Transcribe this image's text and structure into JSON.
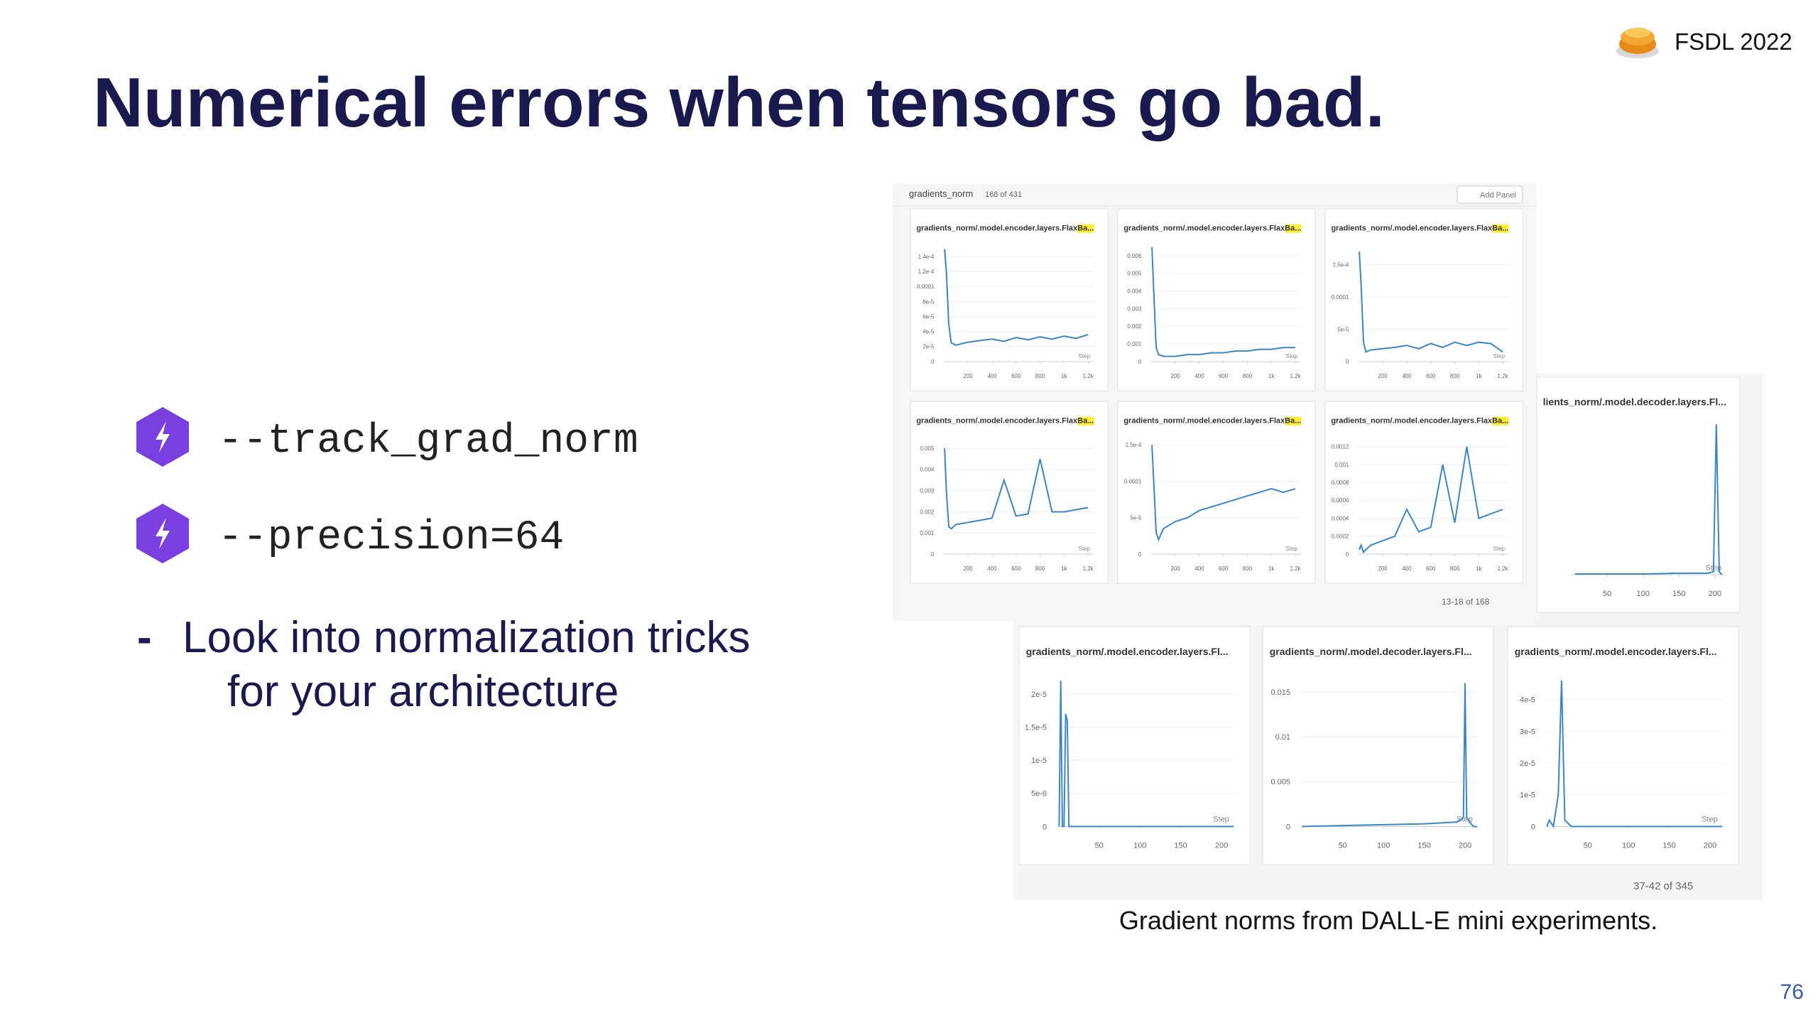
{
  "header": {
    "title": "Numerical errors when tensors go bad.",
    "brand": "FSDL 2022",
    "page_number": "76"
  },
  "bullets": [
    "--track_grad_norm",
    "--precision=64"
  ],
  "note": {
    "marker": "-",
    "lines": [
      "Look into normalization tricks",
      "for your architecture"
    ]
  },
  "screenshot_top": {
    "section": "gradients_norm",
    "count": "168 of 431",
    "add_panel": "Add Panel",
    "pager": "13-18 of 168",
    "panels": [
      {
        "title": "gradients_norm/.model.encoder.layers.FlaxBa...",
        "x_label": "Step",
        "xlim": [
          0,
          1250
        ],
        "ylim": [
          0,
          0.000155
        ],
        "xticks": [
          200,
          400,
          600,
          800,
          {
            "value": 1000,
            "label": "1k"
          },
          {
            "value": 1200,
            "label": "1.2k"
          }
        ],
        "yticks": [
          0,
          {
            "value": 2e-05,
            "label": "2e-5"
          },
          {
            "value": 4e-05,
            "label": "4e-5"
          },
          {
            "value": 6e-05,
            "label": "6e-5"
          },
          {
            "value": 8e-05,
            "label": "8e-5"
          },
          0.0001,
          {
            "value": 0.00012,
            "label": "1.2e-4"
          },
          {
            "value": 0.00014,
            "label": "1.4e-4"
          }
        ],
        "x": [
          5,
          20,
          40,
          60,
          100,
          200,
          300,
          400,
          500,
          600,
          700,
          800,
          900,
          1000,
          1100,
          1200
        ],
        "values": [
          0.00015,
          0.00012,
          5e-05,
          2.5e-05,
          2.2e-05,
          2.6e-05,
          2.8e-05,
          3e-05,
          2.7e-05,
          3.2e-05,
          2.9e-05,
          3.3e-05,
          3e-05,
          3.4e-05,
          3.1e-05,
          3.6e-05
        ]
      },
      {
        "title": "gradients_norm/.model.encoder.layers.FlaxBa...",
        "x_label": "Step",
        "xlim": [
          0,
          1250
        ],
        "ylim": [
          0,
          0.0066
        ],
        "xticks": [
          200,
          400,
          600,
          800,
          {
            "value": 1000,
            "label": "1k"
          },
          {
            "value": 1200,
            "label": "1.2k"
          }
        ],
        "yticks": [
          0,
          0.001,
          0.002,
          0.003,
          0.004,
          0.005,
          0.006
        ],
        "x": [
          5,
          20,
          40,
          60,
          100,
          200,
          300,
          400,
          500,
          600,
          700,
          800,
          900,
          1000,
          1100,
          1200
        ],
        "values": [
          0.0065,
          0.004,
          0.0008,
          0.0004,
          0.0003,
          0.0003,
          0.0004,
          0.0004,
          0.0005,
          0.0005,
          0.0006,
          0.0006,
          0.0007,
          0.0007,
          0.0008,
          0.0008
        ]
      },
      {
        "title": "gradients_norm/.model.encoder.layers.FlaxBa...",
        "x_label": "Step",
        "xlim": [
          0,
          1250
        ],
        "ylim": [
          0,
          0.00018
        ],
        "xticks": [
          200,
          400,
          600,
          800,
          {
            "value": 1000,
            "label": "1k"
          },
          {
            "value": 1200,
            "label": "1.2k"
          }
        ],
        "yticks": [
          0,
          {
            "value": 5e-05,
            "label": "5e-5"
          },
          0.0001,
          {
            "value": 0.00015,
            "label": "1.5e-4"
          }
        ],
        "x": [
          5,
          20,
          40,
          60,
          100,
          200,
          300,
          400,
          500,
          600,
          700,
          800,
          900,
          1000,
          1100,
          1200
        ],
        "values": [
          0.00017,
          0.00012,
          3e-05,
          1.5e-05,
          1.8e-05,
          2e-05,
          2.2e-05,
          2.5e-05,
          2e-05,
          2.8e-05,
          2.2e-05,
          3e-05,
          2.5e-05,
          3e-05,
          2.8e-05,
          1.5e-05
        ]
      },
      {
        "title": "gradients_norm/.model.encoder.layers.FlaxBa...",
        "x_label": "Step",
        "xlim": [
          0,
          1250
        ],
        "ylim": [
          0,
          0.0055
        ],
        "xticks": [
          200,
          400,
          600,
          800,
          {
            "value": 1000,
            "label": "1k"
          },
          {
            "value": 1200,
            "label": "1.2k"
          }
        ],
        "yticks": [
          0,
          0.001,
          0.002,
          0.003,
          0.004,
          0.005
        ],
        "x": [
          5,
          20,
          40,
          60,
          100,
          200,
          300,
          400,
          500,
          600,
          700,
          800,
          900,
          1000,
          1100,
          1200
        ],
        "values": [
          0.005,
          0.003,
          0.0013,
          0.0012,
          0.0014,
          0.0015,
          0.0016,
          0.0017,
          0.0035,
          0.0018,
          0.0019,
          0.0045,
          0.002,
          0.002,
          0.0021,
          0.0022
        ]
      },
      {
        "title": "gradients_norm/.model.encoder.layers.FlaxBa...",
        "x_label": "Step",
        "xlim": [
          0,
          1250
        ],
        "ylim": [
          0,
          0.00016
        ],
        "xticks": [
          200,
          400,
          600,
          800,
          {
            "value": 1000,
            "label": "1k"
          },
          {
            "value": 1200,
            "label": "1.2k"
          }
        ],
        "yticks": [
          0,
          {
            "value": 5e-05,
            "label": "5e-5"
          },
          0.0001,
          {
            "value": 0.00015,
            "label": "1.5e-4"
          }
        ],
        "x": [
          5,
          20,
          40,
          60,
          100,
          200,
          300,
          400,
          500,
          600,
          700,
          800,
          900,
          1000,
          1100,
          1200
        ],
        "values": [
          0.00015,
          0.0001,
          3e-05,
          2e-05,
          3.5e-05,
          4.5e-05,
          5e-05,
          6e-05,
          6.5e-05,
          7e-05,
          7.5e-05,
          8e-05,
          8.5e-05,
          9e-05,
          8.5e-05,
          9e-05
        ]
      },
      {
        "title": "gradients_norm/.model.encoder.layers.FlaxBa...",
        "x_label": "Step",
        "xlim": [
          0,
          1250
        ],
        "ylim": [
          0,
          0.0013
        ],
        "xticks": [
          200,
          400,
          600,
          800,
          {
            "value": 1000,
            "label": "1k"
          },
          {
            "value": 1200,
            "label": "1.2k"
          }
        ],
        "yticks": [
          0,
          0.0002,
          0.0004,
          0.0006,
          0.0008,
          0.001,
          0.0012
        ],
        "x": [
          5,
          20,
          40,
          60,
          100,
          200,
          300,
          400,
          500,
          600,
          700,
          800,
          900,
          1000,
          1100,
          1200
        ],
        "values": [
          5e-05,
          0.0001,
          2e-05,
          5e-05,
          0.0001,
          0.00015,
          0.0002,
          0.0005,
          0.00025,
          0.0003,
          0.001,
          0.00035,
          0.0012,
          0.0004,
          0.00045,
          0.0005
        ]
      }
    ]
  },
  "screenshot_bottom": {
    "pager": "37-42 of 345",
    "panels": [
      {
        "title": "lients_norm/.model.decoder.layers.Fl...",
        "x_label": "Step",
        "xlim": [
          0,
          215
        ],
        "ylim": [
          0,
          1
        ],
        "xticks": [
          50,
          100,
          150,
          200
        ],
        "yticks": [],
        "x": [
          5,
          50,
          100,
          150,
          190,
          198,
          202,
          206,
          210
        ],
        "values": [
          0.005,
          0.005,
          0.005,
          0.01,
          0.01,
          0.02,
          1,
          0.02,
          0
        ]
      },
      {
        "title": "gradients_norm/.model.encoder.layers.Fl...",
        "x_label": "Step",
        "xlim": [
          0,
          215
        ],
        "ylim": [
          0,
          2.3e-05
        ],
        "xticks": [
          50,
          100,
          150,
          200
        ],
        "yticks": [
          0,
          {
            "value": 5e-06,
            "label": "5e-6"
          },
          {
            "value": 1e-05,
            "label": "1e-5"
          },
          {
            "value": 1.5e-05,
            "label": "1.5e-5"
          },
          {
            "value": 2e-05,
            "label": "2e-5"
          }
        ],
        "x": [
          1,
          3,
          5,
          7,
          9,
          11,
          13,
          15,
          50,
          100,
          150,
          200,
          215
        ],
        "values": [
          0,
          2.2e-05,
          0,
          0,
          1.7e-05,
          1.6e-05,
          0,
          0,
          0,
          0,
          0,
          0,
          0
        ]
      },
      {
        "title": "gradients_norm/.model.decoder.layers.Fl...",
        "x_label": "Step",
        "xlim": [
          0,
          215
        ],
        "ylim": [
          0,
          0.017
        ],
        "xticks": [
          50,
          100,
          150,
          200
        ],
        "yticks": [
          0,
          0.005,
          0.01,
          0.015
        ],
        "x": [
          0,
          50,
          100,
          150,
          190,
          198,
          200,
          202,
          210,
          215
        ],
        "values": [
          0,
          0.0001,
          0.0002,
          0.0003,
          0.0005,
          0.001,
          0.016,
          0.001,
          0,
          0
        ]
      },
      {
        "title": "gradients_norm/.model.encoder.layers.Fl...",
        "x_label": "Step",
        "xlim": [
          0,
          215
        ],
        "ylim": [
          0,
          4.8e-05
        ],
        "xticks": [
          50,
          100,
          150,
          200
        ],
        "yticks": [
          0,
          {
            "value": 1e-05,
            "label": "1e-5"
          },
          {
            "value": 2e-05,
            "label": "2e-5"
          },
          {
            "value": 3e-05,
            "label": "3e-5"
          },
          {
            "value": 4e-05,
            "label": "4e-5"
          }
        ],
        "x": [
          0,
          3,
          8,
          14,
          18,
          22,
          30,
          50,
          100,
          150,
          200,
          215
        ],
        "values": [
          0,
          2e-06,
          0,
          1e-05,
          4.6e-05,
          2e-06,
          0,
          0,
          0,
          0,
          0,
          0
        ]
      }
    ]
  },
  "caption": "Gradient norms from DALL-E mini experiments."
}
